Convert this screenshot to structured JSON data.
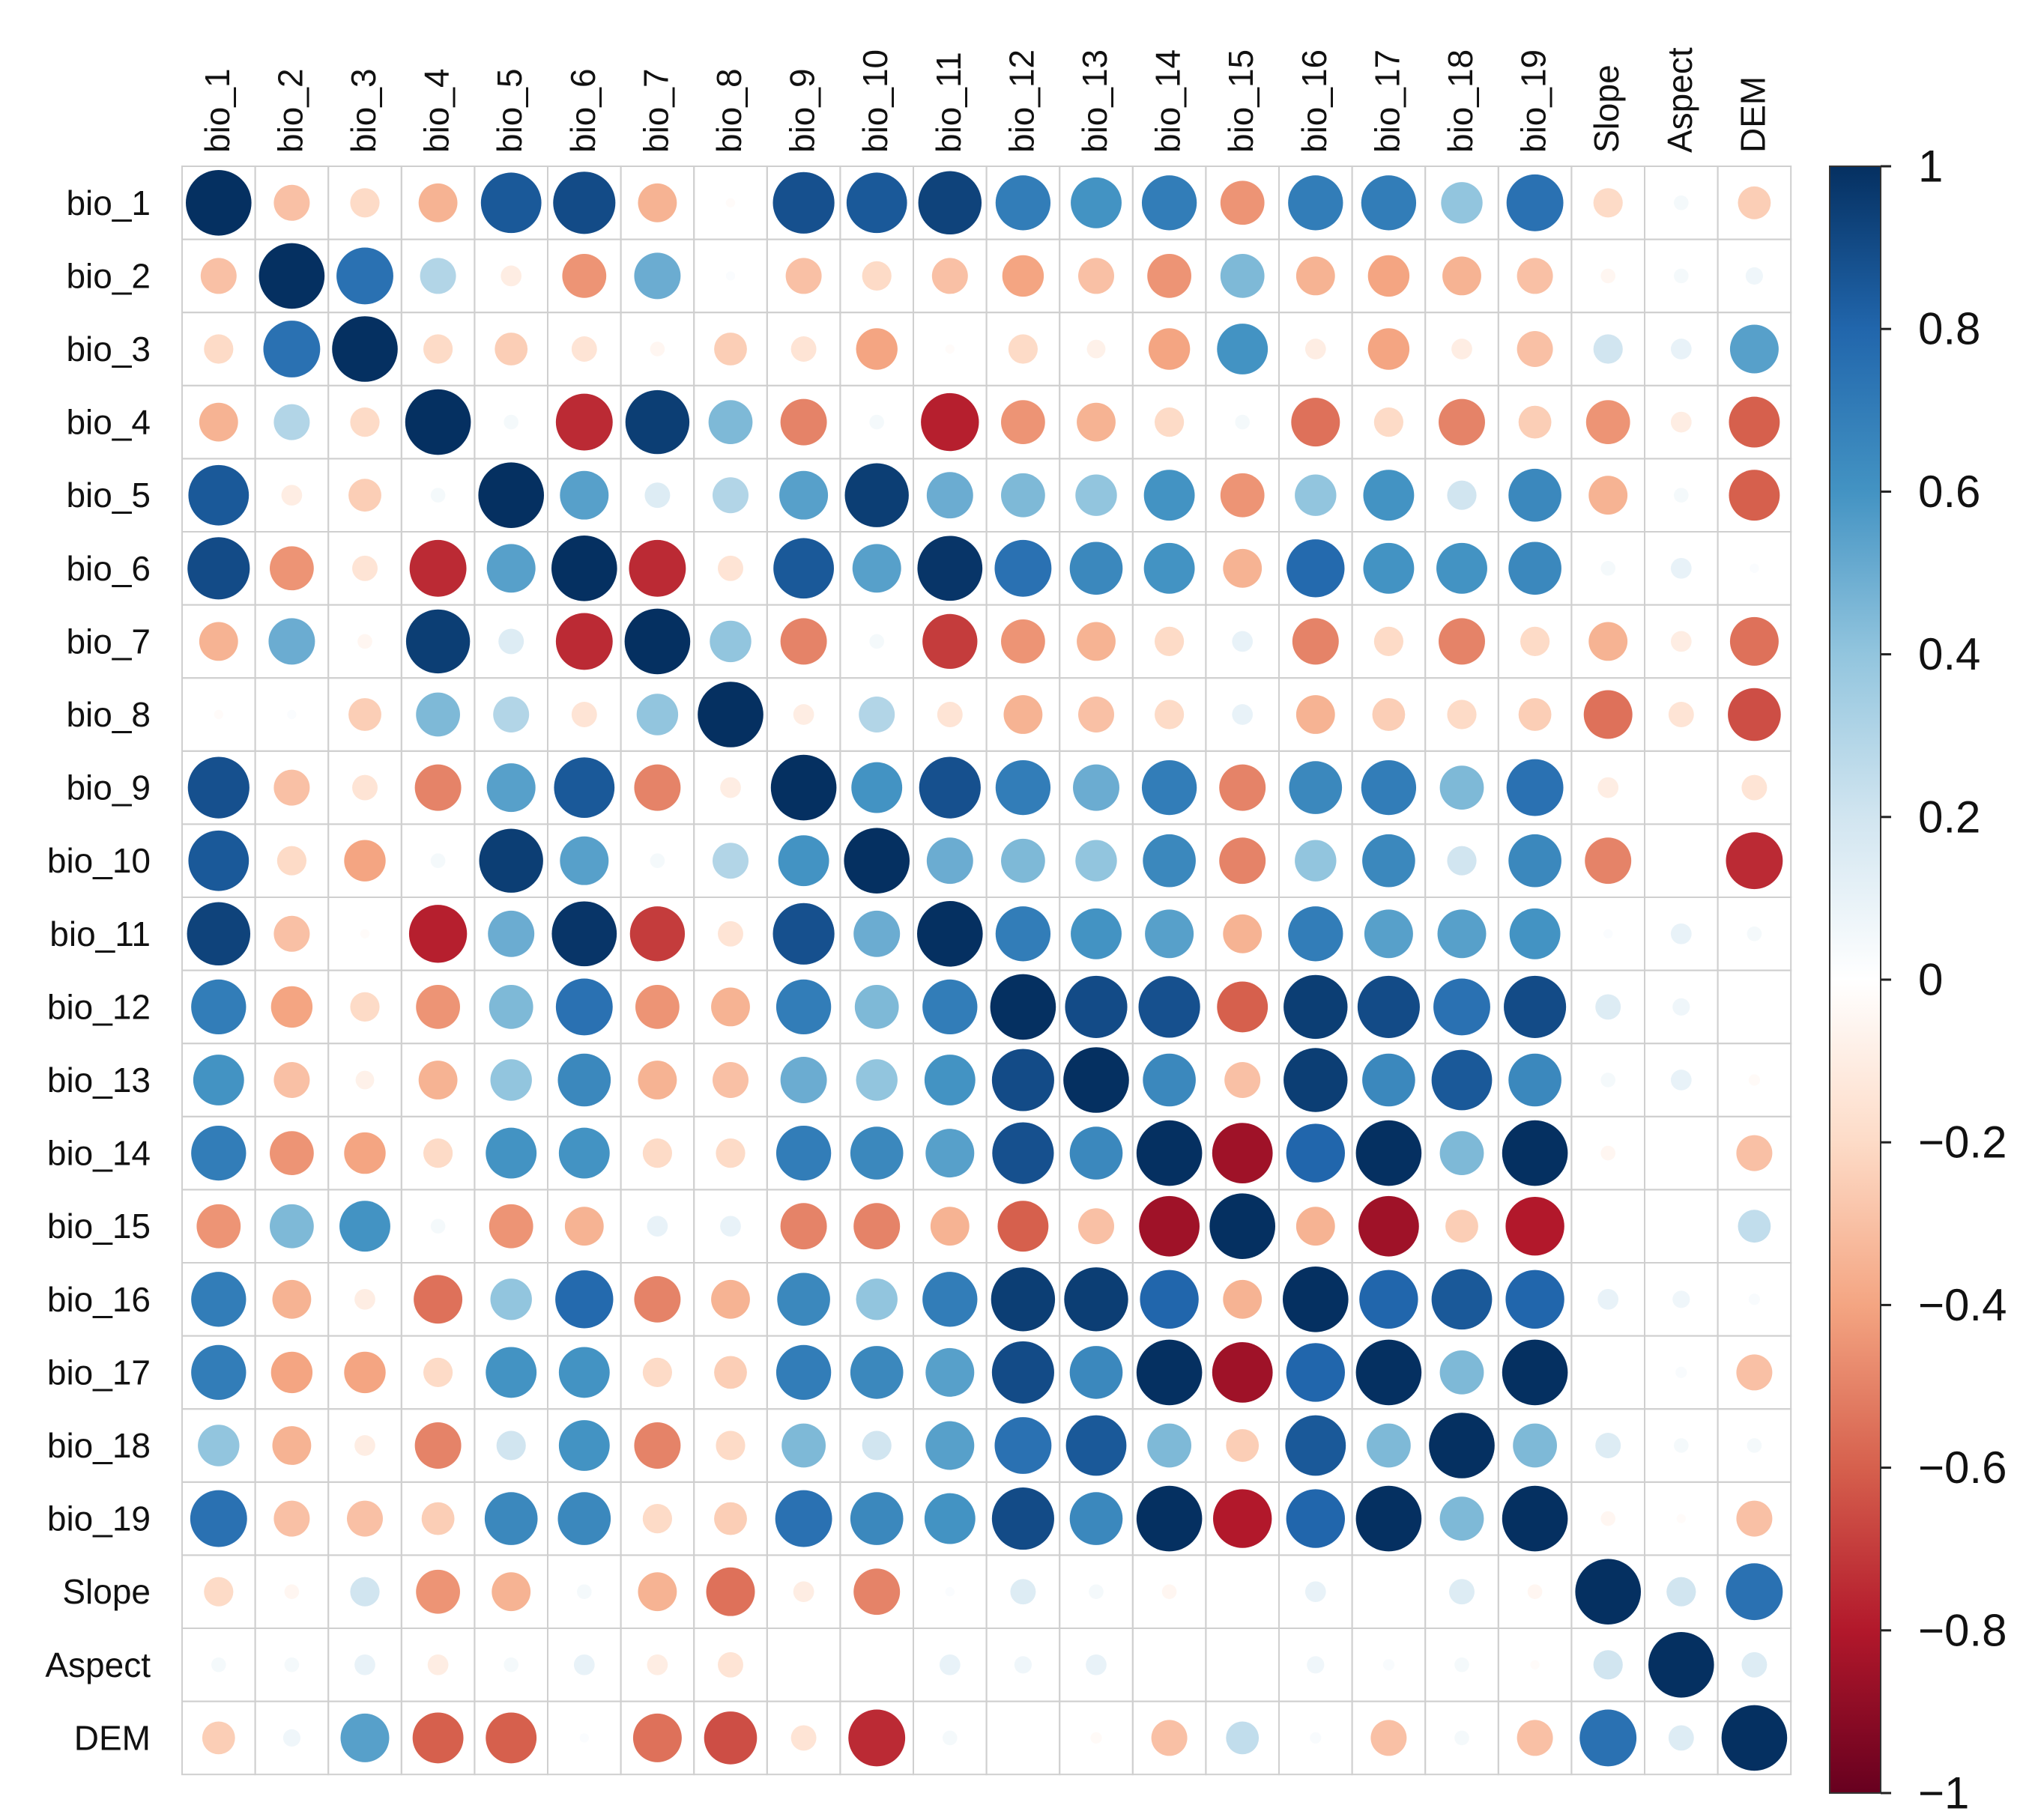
{
  "chart_data": {
    "type": "heatmap",
    "variant": "correlation-circles",
    "title": "",
    "variables": [
      "bio_1",
      "bio_2",
      "bio_3",
      "bio_4",
      "bio_5",
      "bio_6",
      "bio_7",
      "bio_8",
      "bio_9",
      "bio_10",
      "bio_11",
      "bio_12",
      "bio_13",
      "bio_14",
      "bio_15",
      "bio_16",
      "bio_17",
      "bio_18",
      "bio_19",
      "Slope",
      "Aspect",
      "DEM"
    ],
    "matrix": [
      [
        1,
        -0.3,
        -0.2,
        -0.35,
        0.85,
        0.9,
        -0.35,
        -0.02,
        0.88,
        0.85,
        0.93,
        0.7,
        0.6,
        0.7,
        -0.45,
        0.7,
        0.7,
        0.4,
        0.75,
        -0.2,
        0.05,
        -0.25
      ],
      [
        -0.3,
        1,
        0.75,
        0.3,
        -0.1,
        -0.45,
        0.5,
        0.02,
        -0.3,
        -0.2,
        -0.3,
        -0.4,
        -0.3,
        -0.45,
        0.45,
        -0.35,
        -0.4,
        -0.35,
        -0.3,
        -0.05,
        0.05,
        0.07
      ],
      [
        -0.2,
        0.75,
        1,
        -0.2,
        -0.25,
        -0.15,
        -0.05,
        -0.25,
        -0.15,
        -0.4,
        -0.02,
        -0.2,
        -0.08,
        -0.4,
        0.6,
        -0.1,
        -0.4,
        -0.1,
        -0.3,
        0.2,
        0.1,
        0.55
      ],
      [
        -0.35,
        0.3,
        -0.2,
        1,
        0.05,
        -0.75,
        0.95,
        0.45,
        -0.5,
        0.05,
        -0.78,
        -0.45,
        -0.35,
        -0.2,
        0.05,
        -0.55,
        -0.2,
        -0.5,
        -0.25,
        -0.45,
        -0.1,
        -0.6
      ],
      [
        0.85,
        -0.1,
        -0.25,
        0.05,
        1,
        0.55,
        0.15,
        0.3,
        0.55,
        0.95,
        0.5,
        0.45,
        0.4,
        0.6,
        -0.45,
        0.4,
        0.6,
        0.2,
        0.65,
        -0.35,
        0.05,
        -0.6
      ],
      [
        0.9,
        -0.45,
        -0.15,
        -0.75,
        0.55,
        1,
        -0.75,
        -0.15,
        0.85,
        0.55,
        0.98,
        0.75,
        0.65,
        0.6,
        -0.35,
        0.78,
        0.6,
        0.6,
        0.65,
        0.05,
        0.1,
        0.02
      ],
      [
        -0.35,
        0.5,
        -0.05,
        0.95,
        0.15,
        -0.75,
        1,
        0.4,
        -0.5,
        0.05,
        -0.7,
        -0.45,
        -0.35,
        -0.2,
        0.1,
        -0.5,
        -0.2,
        -0.5,
        -0.2,
        -0.35,
        -0.1,
        -0.55
      ],
      [
        -0.02,
        0.02,
        -0.25,
        0.45,
        0.3,
        -0.15,
        0.4,
        1,
        -0.1,
        0.3,
        -0.15,
        -0.35,
        -0.3,
        -0.2,
        0.1,
        -0.35,
        -0.25,
        -0.2,
        -0.25,
        -0.55,
        -0.15,
        -0.65
      ],
      [
        0.88,
        -0.3,
        -0.15,
        -0.5,
        0.55,
        0.85,
        -0.5,
        -0.1,
        1,
        0.6,
        0.88,
        0.7,
        0.5,
        0.7,
        -0.5,
        0.65,
        0.7,
        0.45,
        0.75,
        -0.1,
        0.0,
        -0.15
      ],
      [
        0.85,
        -0.2,
        -0.4,
        0.05,
        0.95,
        0.55,
        0.05,
        0.3,
        0.6,
        1,
        0.5,
        0.45,
        0.4,
        0.65,
        -0.5,
        0.4,
        0.65,
        0.2,
        0.65,
        -0.5,
        0.0,
        -0.75
      ],
      [
        0.93,
        -0.3,
        -0.02,
        -0.78,
        0.5,
        0.98,
        -0.7,
        -0.15,
        0.88,
        0.5,
        1,
        0.7,
        0.6,
        0.55,
        -0.35,
        0.7,
        0.55,
        0.55,
        0.6,
        0.02,
        0.1,
        0.05
      ],
      [
        0.7,
        -0.4,
        -0.2,
        -0.45,
        0.45,
        0.75,
        -0.45,
        -0.35,
        0.7,
        0.45,
        0.7,
        1,
        0.9,
        0.88,
        -0.6,
        0.95,
        0.9,
        0.75,
        0.9,
        0.15,
        0.07,
        0.0
      ],
      [
        0.6,
        -0.3,
        -0.08,
        -0.35,
        0.4,
        0.65,
        -0.35,
        -0.3,
        0.5,
        0.4,
        0.6,
        0.9,
        1,
        0.65,
        -0.3,
        0.95,
        0.65,
        0.85,
        0.65,
        0.05,
        0.1,
        -0.03
      ],
      [
        0.7,
        -0.45,
        -0.4,
        -0.2,
        0.6,
        0.6,
        -0.2,
        -0.2,
        0.7,
        0.65,
        0.55,
        0.88,
        0.65,
        1,
        -0.85,
        0.8,
        1,
        0.45,
        1,
        -0.05,
        0.0,
        -0.3
      ],
      [
        -0.45,
        0.45,
        0.6,
        0.05,
        -0.45,
        -0.35,
        0.1,
        0.1,
        -0.5,
        -0.5,
        -0.35,
        -0.6,
        -0.3,
        -0.85,
        1,
        -0.35,
        -0.85,
        -0.25,
        -0.8,
        0.0,
        0.0,
        0.25
      ],
      [
        0.7,
        -0.35,
        -0.1,
        -0.55,
        0.4,
        0.78,
        -0.5,
        -0.35,
        0.65,
        0.4,
        0.7,
        0.95,
        0.95,
        0.8,
        -0.35,
        1,
        0.8,
        0.85,
        0.8,
        0.1,
        0.07,
        0.03
      ],
      [
        0.7,
        -0.4,
        -0.4,
        -0.2,
        0.6,
        0.6,
        -0.2,
        -0.25,
        0.7,
        0.65,
        0.55,
        0.9,
        0.65,
        1,
        -0.85,
        0.8,
        1,
        0.45,
        1,
        0.0,
        0.03,
        -0.3
      ],
      [
        0.4,
        -0.35,
        -0.1,
        -0.5,
        0.2,
        0.6,
        -0.5,
        -0.2,
        0.45,
        0.2,
        0.55,
        0.75,
        0.85,
        0.45,
        -0.25,
        0.85,
        0.45,
        1,
        0.45,
        0.15,
        0.05,
        0.05
      ],
      [
        0.75,
        -0.3,
        -0.3,
        -0.25,
        0.65,
        0.65,
        -0.2,
        -0.25,
        0.75,
        0.65,
        0.6,
        0.9,
        0.65,
        1,
        -0.8,
        0.8,
        1,
        0.45,
        1,
        -0.05,
        -0.02,
        -0.3
      ],
      [
        -0.2,
        -0.05,
        0.2,
        -0.45,
        -0.35,
        0.05,
        -0.35,
        -0.55,
        -0.1,
        -0.5,
        0.02,
        0.15,
        0.05,
        -0.05,
        0.0,
        0.1,
        0.0,
        0.15,
        -0.05,
        1,
        0.2,
        0.75
      ],
      [
        0.05,
        0.05,
        0.1,
        -0.1,
        0.05,
        0.1,
        -0.1,
        -0.15,
        0.0,
        0.0,
        0.1,
        0.07,
        0.1,
        0.0,
        0.0,
        0.07,
        0.03,
        0.05,
        -0.02,
        0.2,
        1,
        0.15
      ],
      [
        -0.25,
        0.07,
        0.55,
        -0.6,
        -0.6,
        0.02,
        -0.55,
        -0.65,
        -0.15,
        -0.75,
        0.05,
        0.0,
        -0.03,
        -0.3,
        0.25,
        0.03,
        -0.3,
        0.05,
        -0.3,
        0.75,
        0.15,
        1
      ]
    ],
    "color_scale": {
      "range": [
        -1,
        1
      ],
      "ticks": [
        "1",
        "0.8",
        "0.6",
        "0.4",
        "0.2",
        "0",
        "−0.2",
        "−0.4",
        "−0.6",
        "−0.8",
        "−1"
      ],
      "tick_values": [
        1,
        0.8,
        0.6,
        0.4,
        0.2,
        0,
        -0.2,
        -0.4,
        -0.6,
        -0.8,
        -1
      ],
      "stops": [
        "#67001F",
        "#B2182B",
        "#D6604D",
        "#F4A582",
        "#FDDBC7",
        "#FFFFFF",
        "#D1E5F0",
        "#92C5DE",
        "#4393C3",
        "#2166AC",
        "#053061"
      ]
    },
    "grid": true,
    "legend": "right"
  }
}
